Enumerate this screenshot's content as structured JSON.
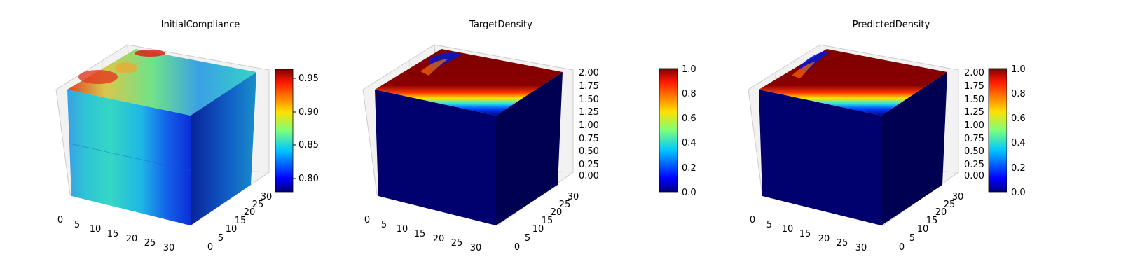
{
  "chart_data": [
    {
      "type": "heatmap",
      "title": "InitialCompliance",
      "x_ticks": [
        "0",
        "5",
        "10",
        "15",
        "20",
        "25",
        "30"
      ],
      "y_ticks": [
        "0",
        "5",
        "10",
        "15",
        "20",
        "25",
        "30"
      ],
      "z_ticks": [
        "",
        "",
        "",
        "",
        "",
        "",
        ""
      ],
      "colorbar_ticks": [
        "0.80",
        "0.85",
        "0.90",
        "0.95"
      ],
      "colorbar_range": [
        0.78,
        0.965
      ],
      "colormap": "jet"
    },
    {
      "type": "heatmap",
      "title": "TargetDensity",
      "x_ticks": [
        "0",
        "5",
        "10",
        "15",
        "20",
        "25",
        "30"
      ],
      "y_ticks": [
        "0",
        "5",
        "10",
        "15",
        "20",
        "25",
        "30"
      ],
      "z_ticks": [
        "0.00",
        "0.25",
        "0.50",
        "0.75",
        "1.00",
        "1.25",
        "1.50",
        "1.75",
        "2.00"
      ],
      "colorbar_ticks": [
        "0.0",
        "0.2",
        "0.4",
        "0.6",
        "0.8",
        "1.0"
      ],
      "colorbar_range": [
        0,
        1
      ],
      "colormap": "jet"
    },
    {
      "type": "heatmap",
      "title": "PredictedDensity",
      "x_ticks": [
        "0",
        "5",
        "10",
        "15",
        "20",
        "25",
        "30"
      ],
      "y_ticks": [
        "0",
        "5",
        "10",
        "15",
        "20",
        "25",
        "30"
      ],
      "z_ticks": [
        "0.00",
        "0.25",
        "0.50",
        "0.75",
        "1.00",
        "1.25",
        "1.50",
        "1.75",
        "2.00"
      ],
      "colorbar_ticks": [
        "0.0",
        "0.2",
        "0.4",
        "0.6",
        "0.8",
        "1.0"
      ],
      "colorbar_range": [
        0,
        1
      ],
      "colormap": "jet"
    }
  ]
}
